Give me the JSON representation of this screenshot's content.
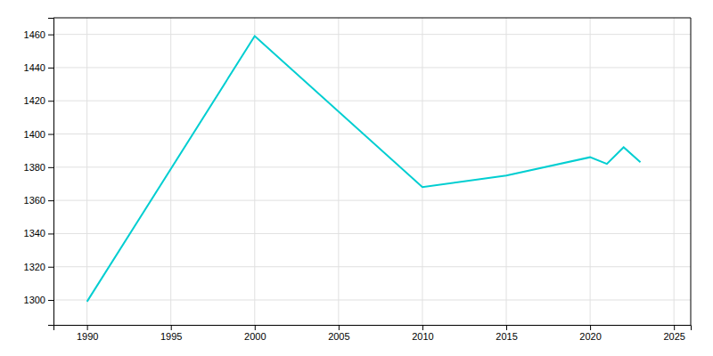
{
  "chart_data": {
    "type": "line",
    "x": [
      1990,
      2000,
      2010,
      2015,
      2020,
      2021,
      2022,
      2023
    ],
    "values": [
      1299,
      1459,
      1368,
      1375,
      1386,
      1382,
      1392,
      1383
    ],
    "color": "#00CED1",
    "xlim": [
      1988,
      2026
    ],
    "ylim": [
      1285,
      1470
    ],
    "xticks": [
      1990,
      1995,
      2000,
      2005,
      2010,
      2015,
      2020,
      2025
    ],
    "yticks": [
      1300,
      1320,
      1340,
      1360,
      1380,
      1400,
      1420,
      1440,
      1460
    ],
    "grid": true
  }
}
